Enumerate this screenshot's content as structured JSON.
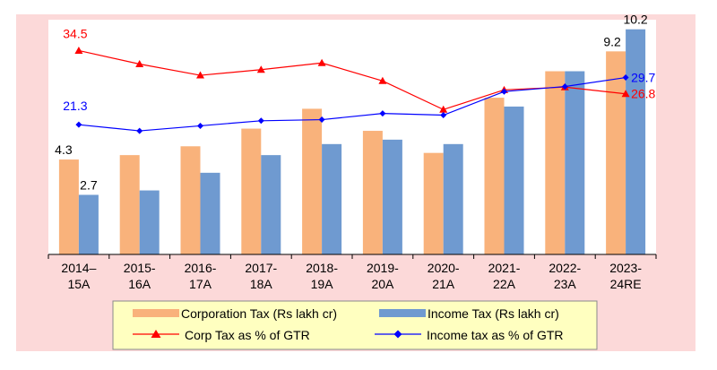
{
  "chart_data": {
    "type": "bar",
    "categories": [
      [
        "2014–",
        "15A"
      ],
      [
        "2015-",
        "16A"
      ],
      [
        "2016-",
        "17A"
      ],
      [
        "2017-",
        "18A"
      ],
      [
        "2018-",
        "19A"
      ],
      [
        "2019-",
        "20A"
      ],
      [
        "2020-",
        "21A"
      ],
      [
        "2021-",
        "22A"
      ],
      [
        "2022-",
        "23A"
      ],
      [
        "2023-",
        "24RE"
      ]
    ],
    "bar_ylim": [
      0,
      11
    ],
    "line_ylim": [
      10,
      40
    ],
    "series": [
      {
        "name": "Corporation Tax (Rs lakh cr)",
        "kind": "bar",
        "axis": "left",
        "color": "#f9b27b",
        "values": [
          4.3,
          4.5,
          4.9,
          5.7,
          6.6,
          5.6,
          4.6,
          7.1,
          8.3,
          9.2
        ]
      },
      {
        "name": "Income Tax (Rs lakh cr)",
        "kind": "bar",
        "axis": "left",
        "color": "#6f9ad0",
        "values": [
          2.7,
          2.9,
          3.7,
          4.5,
          5.0,
          5.2,
          5.0,
          6.7,
          8.3,
          10.2
        ]
      },
      {
        "name": "Corp Tax as % of GTR",
        "kind": "line",
        "axis": "right",
        "color": "#ff0000",
        "marker": "triangle",
        "values": [
          34.5,
          32.1,
          30.1,
          31.1,
          32.3,
          29.1,
          24.0,
          27.5,
          28.0,
          26.8
        ]
      },
      {
        "name": "Income tax as % of GTR",
        "kind": "line",
        "axis": "right",
        "color": "#0000ff",
        "marker": "diamond",
        "values": [
          21.3,
          20.2,
          21.1,
          22.0,
          22.2,
          23.3,
          23.0,
          27.2,
          28.1,
          29.7
        ]
      }
    ],
    "data_labels": [
      {
        "series": 0,
        "index": 0,
        "text": "4.3"
      },
      {
        "series": 1,
        "index": 0,
        "text": "2.7"
      },
      {
        "series": 0,
        "index": 9,
        "text": "9.2"
      },
      {
        "series": 1,
        "index": 9,
        "text": "10.2"
      },
      {
        "series": 2,
        "index": 0,
        "text": "34.5"
      },
      {
        "series": 3,
        "index": 0,
        "text": "21.3"
      },
      {
        "series": 3,
        "index": 9,
        "text": "29.7"
      },
      {
        "series": 2,
        "index": 9,
        "text": "26.8"
      }
    ],
    "legend_position": "bottom",
    "grid": false
  },
  "colors": {
    "outer_background": "#fcd9d9",
    "plot_background": "#ffffff",
    "legend_background": "#ffffc0"
  }
}
